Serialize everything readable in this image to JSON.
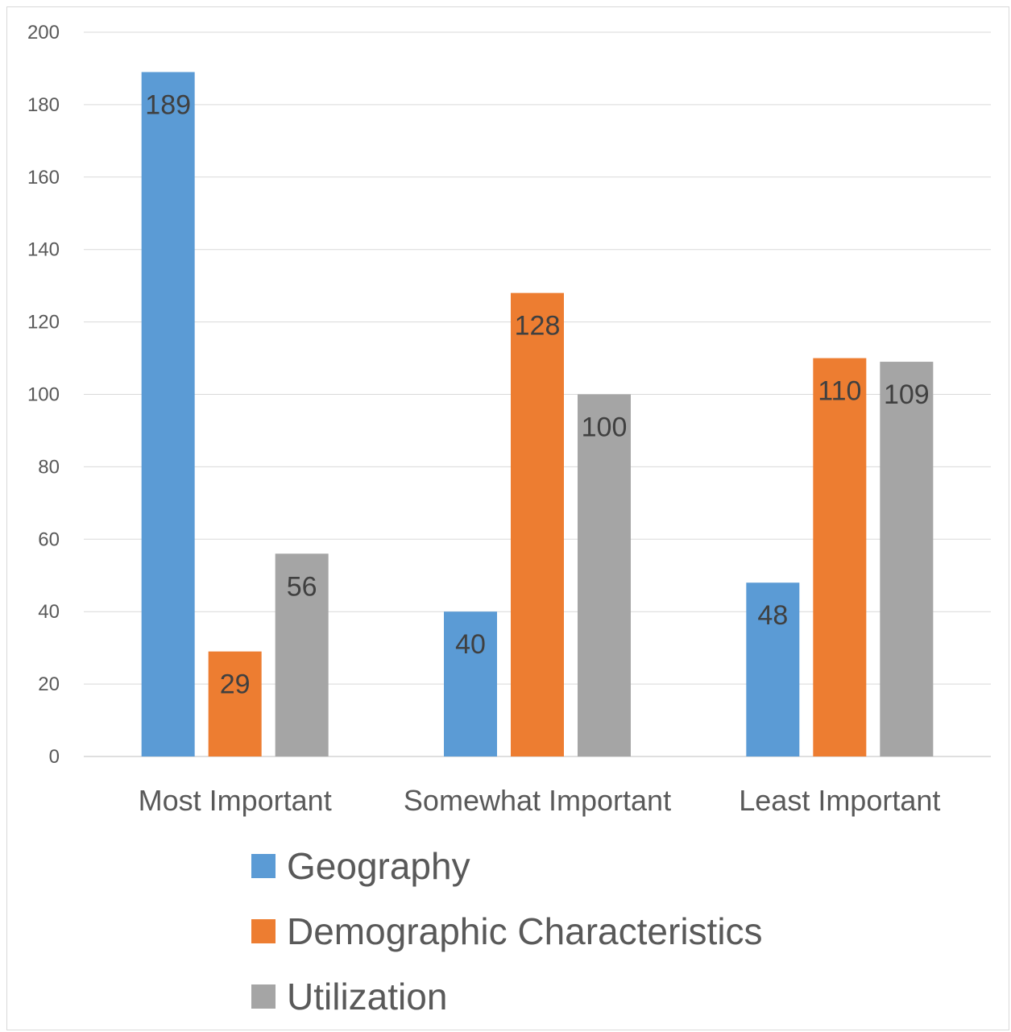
{
  "chart_data": {
    "type": "bar",
    "categories": [
      "Most Important",
      "Somewhat Important",
      "Least Important"
    ],
    "series": [
      {
        "name": "Geography",
        "values": [
          189,
          40,
          48
        ],
        "color": "#5b9bd5"
      },
      {
        "name": "Demographic Characteristics",
        "values": [
          29,
          128,
          110
        ],
        "color": "#ed7d31"
      },
      {
        "name": "Utilization",
        "values": [
          56,
          100,
          109
        ],
        "color": "#a5a5a5"
      }
    ],
    "y_ticks": [
      "0",
      "20",
      "40",
      "60",
      "80",
      "100",
      "120",
      "140",
      "160",
      "180",
      "200"
    ],
    "ylim": [
      0,
      200
    ],
    "grid": true,
    "data_labels": true,
    "legend_position": "bottom",
    "title": "",
    "xlabel": "",
    "ylabel": ""
  }
}
